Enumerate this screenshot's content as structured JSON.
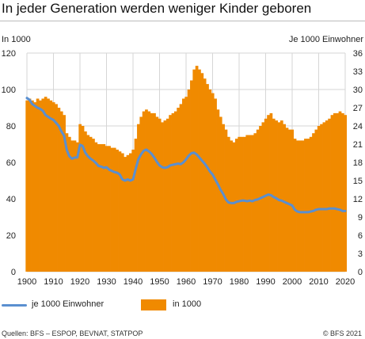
{
  "title": "In jeder Generation werden weniger Kinder geboren",
  "source": "Quellen: BFS – ESPOP, BEVNAT, STATPOP",
  "copyright": "© BFS 2021",
  "colors": {
    "bars": "#f08a00",
    "line": "#5a8fd0",
    "grid": "#d6d6d6"
  },
  "chart_data": {
    "type": "bar",
    "title": "In jeder Generation werden weniger Kinder geboren",
    "left_axis_title": "In 1000",
    "right_axis_title": "Je 1000 Einwohner",
    "ylim_left": [
      0,
      120
    ],
    "ylim_right": [
      0,
      36
    ],
    "xlim": [
      1900,
      2020
    ],
    "left_ticks": [
      0,
      20,
      40,
      60,
      80,
      100,
      120
    ],
    "right_ticks": [
      0,
      3,
      6,
      9,
      12,
      15,
      18,
      21,
      24,
      27,
      30,
      33,
      36
    ],
    "x_ticks": [
      1900,
      1910,
      1920,
      1930,
      1940,
      1950,
      1960,
      1970,
      1980,
      1990,
      2000,
      2010,
      2020
    ],
    "grid": true,
    "legend_position": "bottom",
    "series": [
      {
        "name": "in 1000",
        "type": "bar",
        "axis": "left",
        "x": [
          1900,
          1901,
          1902,
          1903,
          1904,
          1905,
          1906,
          1907,
          1908,
          1909,
          1910,
          1911,
          1912,
          1913,
          1914,
          1915,
          1916,
          1917,
          1918,
          1919,
          1920,
          1921,
          1922,
          1923,
          1924,
          1925,
          1926,
          1927,
          1928,
          1929,
          1930,
          1931,
          1932,
          1933,
          1934,
          1935,
          1936,
          1937,
          1938,
          1939,
          1940,
          1941,
          1942,
          1943,
          1944,
          1945,
          1946,
          1947,
          1948,
          1949,
          1950,
          1951,
          1952,
          1953,
          1954,
          1955,
          1956,
          1957,
          1958,
          1959,
          1960,
          1961,
          1962,
          1963,
          1964,
          1965,
          1966,
          1967,
          1968,
          1969,
          1970,
          1971,
          1972,
          1973,
          1974,
          1975,
          1976,
          1977,
          1978,
          1979,
          1980,
          1981,
          1982,
          1983,
          1984,
          1985,
          1986,
          1987,
          1988,
          1989,
          1990,
          1991,
          1992,
          1993,
          1994,
          1995,
          1996,
          1997,
          1998,
          1999,
          2000,
          2001,
          2002,
          2003,
          2004,
          2005,
          2006,
          2007,
          2008,
          2009,
          2010,
          2011,
          2012,
          2013,
          2014,
          2015,
          2016,
          2017,
          2018,
          2019,
          2020
        ],
        "values": [
          94,
          95,
          94,
          93,
          95,
          94,
          95,
          96,
          95,
          94,
          93,
          92,
          90,
          88,
          86,
          76,
          74,
          72,
          72,
          71,
          81,
          80,
          77,
          75,
          74,
          73,
          71,
          70,
          70,
          70,
          69,
          69,
          68,
          68,
          67,
          66,
          65,
          63,
          64,
          65,
          67,
          73,
          81,
          85,
          88,
          89,
          88,
          87,
          87,
          85,
          84,
          82,
          83,
          84,
          86,
          87,
          88,
          90,
          92,
          95,
          96,
          100,
          105,
          111,
          113,
          111,
          109,
          106,
          103,
          100,
          98,
          95,
          89,
          85,
          81,
          78,
          74,
          72,
          71,
          73,
          74,
          74,
          74,
          75,
          75,
          75,
          76,
          78,
          80,
          82,
          84,
          86,
          87,
          84,
          83,
          82,
          83,
          81,
          79,
          78,
          78,
          73,
          72,
          72,
          72,
          73,
          73,
          74,
          76,
          78,
          80,
          81,
          82,
          83,
          84,
          86,
          87,
          87,
          88,
          87,
          86
        ]
      },
      {
        "name": "je 1000 Einwohner",
        "type": "line",
        "axis": "right",
        "x": [
          1900,
          1901,
          1902,
          1903,
          1904,
          1905,
          1906,
          1907,
          1908,
          1909,
          1910,
          1911,
          1912,
          1913,
          1914,
          1915,
          1916,
          1917,
          1918,
          1919,
          1920,
          1921,
          1922,
          1923,
          1924,
          1925,
          1926,
          1927,
          1928,
          1929,
          1930,
          1931,
          1932,
          1933,
          1934,
          1935,
          1936,
          1937,
          1938,
          1939,
          1940,
          1941,
          1942,
          1943,
          1944,
          1945,
          1946,
          1947,
          1948,
          1949,
          1950,
          1951,
          1952,
          1953,
          1954,
          1955,
          1956,
          1957,
          1958,
          1959,
          1960,
          1961,
          1962,
          1963,
          1964,
          1965,
          1966,
          1967,
          1968,
          1969,
          1970,
          1971,
          1972,
          1973,
          1974,
          1975,
          1976,
          1977,
          1978,
          1979,
          1980,
          1981,
          1982,
          1983,
          1984,
          1985,
          1986,
          1987,
          1988,
          1989,
          1990,
          1991,
          1992,
          1993,
          1994,
          1995,
          1996,
          1997,
          1998,
          1999,
          2000,
          2001,
          2002,
          2003,
          2004,
          2005,
          2006,
          2007,
          2008,
          2009,
          2010,
          2011,
          2012,
          2013,
          2014,
          2015,
          2016,
          2017,
          2018,
          2019,
          2020
        ],
        "values": [
          28.6,
          28.3,
          27.6,
          27.3,
          27.0,
          26.8,
          26.5,
          25.8,
          25.5,
          25.2,
          25.0,
          24.5,
          24.0,
          23.1,
          22.4,
          20.1,
          19.0,
          18.6,
          18.8,
          18.8,
          20.9,
          20.7,
          19.6,
          19.0,
          18.6,
          18.3,
          17.9,
          17.4,
          17.3,
          17.1,
          17.2,
          16.8,
          16.6,
          16.4,
          16.3,
          16.0,
          15.2,
          15.0,
          15.2,
          15.0,
          15.2,
          16.9,
          18.5,
          19.3,
          19.9,
          20.1,
          19.8,
          19.4,
          18.8,
          18.1,
          17.5,
          17.2,
          17.1,
          17.2,
          17.5,
          17.6,
          17.7,
          17.8,
          17.7,
          18.0,
          18.5,
          19.1,
          19.5,
          19.6,
          19.3,
          18.8,
          18.3,
          17.8,
          17.2,
          16.5,
          16.0,
          15.2,
          14.4,
          13.5,
          12.8,
          11.9,
          11.4,
          11.3,
          11.3,
          11.5,
          11.6,
          11.7,
          11.7,
          11.6,
          11.7,
          11.6,
          11.8,
          11.9,
          12.1,
          12.3,
          12.5,
          12.7,
          12.6,
          12.3,
          12.1,
          11.8,
          11.7,
          11.5,
          11.3,
          11.1,
          10.9,
          10.2,
          9.9,
          9.8,
          9.8,
          9.8,
          9.8,
          9.9,
          10.0,
          10.2,
          10.3,
          10.3,
          10.3,
          10.3,
          10.4,
          10.4,
          10.4,
          10.3,
          10.2,
          10.0,
          10.0
        ]
      }
    ]
  }
}
